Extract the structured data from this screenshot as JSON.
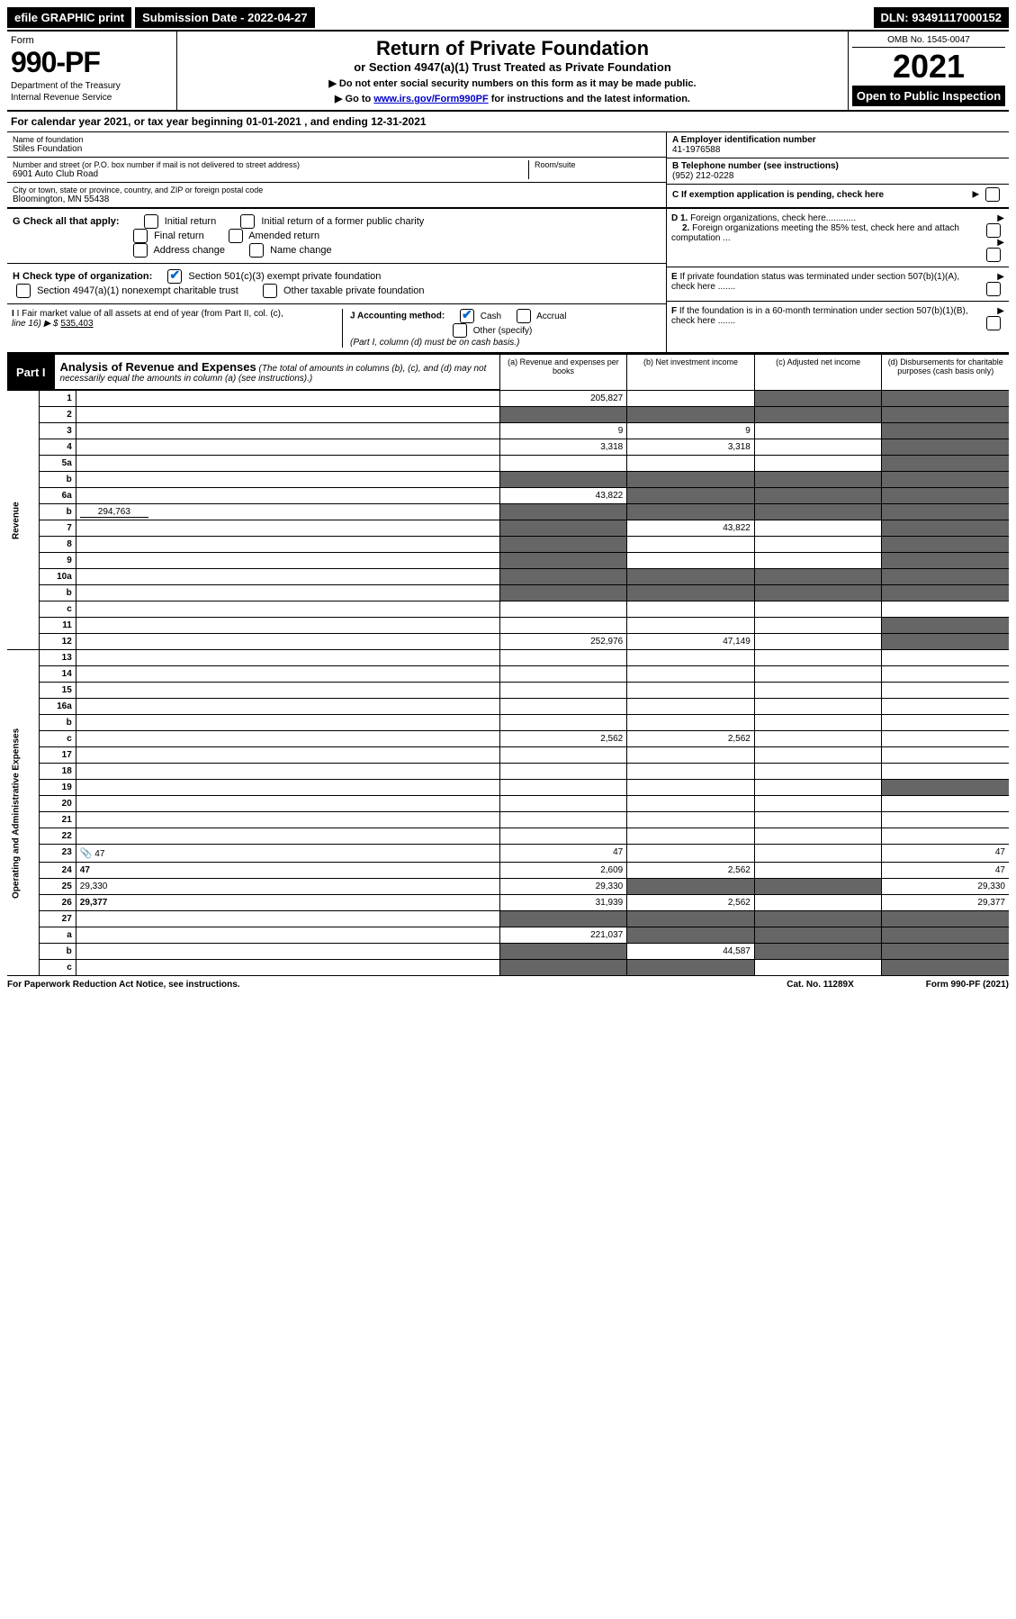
{
  "top_bar": {
    "efile": "efile GRAPHIC print",
    "submission": "Submission Date - 2022-04-27",
    "dln": "DLN: 93491117000152"
  },
  "header": {
    "form_label": "Form",
    "form_number": "990-PF",
    "dept1": "Department of the Treasury",
    "dept2": "Internal Revenue Service",
    "title": "Return of Private Foundation",
    "subtitle": "or Section 4947(a)(1) Trust Treated as Private Foundation",
    "inst1": "▶ Do not enter social security numbers on this form as it may be made public.",
    "inst2_pre": "▶ Go to ",
    "inst2_link": "www.irs.gov/Form990PF",
    "inst2_post": " for instructions and the latest information.",
    "omb": "OMB No. 1545-0047",
    "year": "2021",
    "open": "Open to Public Inspection"
  },
  "calendar": {
    "text_pre": "For calendar year 2021, or tax year beginning ",
    "begin": "01-01-2021",
    "text_mid": " , and ending ",
    "end": "12-31-2021"
  },
  "foundation": {
    "name_label": "Name of foundation",
    "name": "Stiles Foundation",
    "addr_label": "Number and street (or P.O. box number if mail is not delivered to street address)",
    "addr": "6901 Auto Club Road",
    "room_label": "Room/suite",
    "city_label": "City or town, state or province, country, and ZIP or foreign postal code",
    "city": "Bloomington, MN  55438",
    "ein_label": "A Employer identification number",
    "ein": "41-1976588",
    "phone_label": "B Telephone number (see instructions)",
    "phone": "(952) 212-0228",
    "pending_label": "C If exemption application is pending, check here"
  },
  "checks": {
    "g_label": "G Check all that apply:",
    "g1": "Initial return",
    "g2": "Initial return of a former public charity",
    "g3": "Final return",
    "g4": "Amended return",
    "g5": "Address change",
    "g6": "Name change",
    "h_label": "H Check type of organization:",
    "h1": "Section 501(c)(3) exempt private foundation",
    "h2": "Section 4947(a)(1) nonexempt charitable trust",
    "h3": "Other taxable private foundation",
    "i_label": "I Fair market value of all assets at end of year (from Part II, col. (c),",
    "i_line": "line 16) ▶ $",
    "i_val": "535,403",
    "j_label": "J Accounting method:",
    "j1": "Cash",
    "j2": "Accrual",
    "j3": "Other (specify)",
    "j_note": "(Part I, column (d) must be on cash basis.)",
    "d1": "D 1. Foreign organizations, check here............",
    "d2": "2. Foreign organizations meeting the 85% test, check here and attach computation ...",
    "e": "E  If private foundation status was terminated under section 507(b)(1)(A), check here .......",
    "f": "F  If the foundation is in a 60-month termination under section 507(b)(1)(B), check here ......."
  },
  "part1": {
    "label": "Part I",
    "title": "Analysis of Revenue and Expenses",
    "desc": " (The total of amounts in columns (b), (c), and (d) may not necessarily equal the amounts in column (a) (see instructions).)",
    "col_a": "(a) Revenue and expenses per books",
    "col_b": "(b) Net investment income",
    "col_c": "(c) Adjusted net income",
    "col_d": "(d) Disbursements for charitable purposes (cash basis only)"
  },
  "side_labels": {
    "revenue": "Revenue",
    "expenses": "Operating and Administrative Expenses"
  },
  "rows": [
    {
      "n": "1",
      "d": "",
      "a": "205,827",
      "b": "",
      "c": ""
    },
    {
      "n": "2",
      "d": "",
      "a": "",
      "b": "",
      "c": ""
    },
    {
      "n": "3",
      "d": "",
      "a": "9",
      "b": "9",
      "c": ""
    },
    {
      "n": "4",
      "d": "",
      "a": "3,318",
      "b": "3,318",
      "c": ""
    },
    {
      "n": "5a",
      "d": "",
      "a": "",
      "b": "",
      "c": ""
    },
    {
      "n": "b",
      "d": "",
      "a": "",
      "b": "",
      "c": ""
    },
    {
      "n": "6a",
      "d": "",
      "a": "43,822",
      "b": "",
      "c": ""
    },
    {
      "n": "b",
      "d": "",
      "extra": "294,763",
      "a": "",
      "b": "",
      "c": ""
    },
    {
      "n": "7",
      "d": "",
      "a": "",
      "b": "43,822",
      "c": ""
    },
    {
      "n": "8",
      "d": "",
      "a": "",
      "b": "",
      "c": ""
    },
    {
      "n": "9",
      "d": "",
      "a": "",
      "b": "",
      "c": ""
    },
    {
      "n": "10a",
      "d": "",
      "a": "",
      "b": "",
      "c": ""
    },
    {
      "n": "b",
      "d": "",
      "a": "",
      "b": "",
      "c": ""
    },
    {
      "n": "c",
      "d": "",
      "a": "",
      "b": "",
      "c": ""
    },
    {
      "n": "11",
      "d": "",
      "a": "",
      "b": "",
      "c": ""
    },
    {
      "n": "12",
      "d": "",
      "a": "252,976",
      "b": "47,149",
      "c": "",
      "bold": true
    },
    {
      "n": "13",
      "d": "",
      "a": "",
      "b": "",
      "c": ""
    },
    {
      "n": "14",
      "d": "",
      "a": "",
      "b": "",
      "c": ""
    },
    {
      "n": "15",
      "d": "",
      "a": "",
      "b": "",
      "c": ""
    },
    {
      "n": "16a",
      "d": "",
      "a": "",
      "b": "",
      "c": ""
    },
    {
      "n": "b",
      "d": "",
      "a": "",
      "b": "",
      "c": ""
    },
    {
      "n": "c",
      "d": "",
      "a": "2,562",
      "b": "2,562",
      "c": ""
    },
    {
      "n": "17",
      "d": "",
      "a": "",
      "b": "",
      "c": ""
    },
    {
      "n": "18",
      "d": "",
      "a": "",
      "b": "",
      "c": ""
    },
    {
      "n": "19",
      "d": "",
      "a": "",
      "b": "",
      "c": ""
    },
    {
      "n": "20",
      "d": "",
      "a": "",
      "b": "",
      "c": ""
    },
    {
      "n": "21",
      "d": "",
      "a": "",
      "b": "",
      "c": ""
    },
    {
      "n": "22",
      "d": "",
      "a": "",
      "b": "",
      "c": ""
    },
    {
      "n": "23",
      "d": "47",
      "icon": true,
      "a": "47",
      "b": "",
      "c": ""
    },
    {
      "n": "24",
      "d": "47",
      "a": "2,609",
      "b": "2,562",
      "c": "",
      "bold": true
    },
    {
      "n": "25",
      "d": "29,330",
      "a": "29,330",
      "b": "",
      "c": ""
    },
    {
      "n": "26",
      "d": "29,377",
      "a": "31,939",
      "b": "2,562",
      "c": "",
      "bold": true
    },
    {
      "n": "27",
      "d": "",
      "a": "",
      "b": "",
      "c": ""
    },
    {
      "n": "a",
      "d": "",
      "a": "221,037",
      "b": "",
      "c": "",
      "bold": true
    },
    {
      "n": "b",
      "d": "",
      "a": "",
      "b": "44,587",
      "c": "",
      "bold": true
    },
    {
      "n": "c",
      "d": "",
      "a": "",
      "b": "",
      "c": "",
      "bold": true
    }
  ],
  "shading": {
    "1": [
      "c",
      "d"
    ],
    "2": [
      "a",
      "b",
      "c",
      "d"
    ],
    "3": [
      "d"
    ],
    "4": [
      "d"
    ],
    "5a": [
      "d"
    ],
    "b_5": [
      "a",
      "b",
      "c",
      "d"
    ],
    "6a": [
      "b",
      "c",
      "d"
    ],
    "b_6": [
      "a",
      "b",
      "c",
      "d"
    ],
    "7": [
      "a",
      "d"
    ],
    "8": [
      "a",
      "d"
    ],
    "9": [
      "a",
      "d"
    ],
    "10a": [
      "a",
      "b",
      "c",
      "d"
    ],
    "b_10": [
      "a",
      "b",
      "c",
      "d"
    ],
    "c": [
      "d"
    ],
    "11": [
      "d"
    ],
    "12": [
      "d"
    ],
    "19": [
      "d"
    ],
    "25": [
      "b",
      "c"
    ],
    "27": [
      "a",
      "b",
      "c",
      "d"
    ],
    "a_27": [
      "b",
      "c",
      "d"
    ],
    "b_27": [
      "a",
      "c",
      "d"
    ],
    "c_27": [
      "a",
      "b",
      "d"
    ]
  },
  "footer": {
    "left": "For Paperwork Reduction Act Notice, see instructions.",
    "mid": "Cat. No. 11289X",
    "right": "Form 990-PF (2021)"
  }
}
